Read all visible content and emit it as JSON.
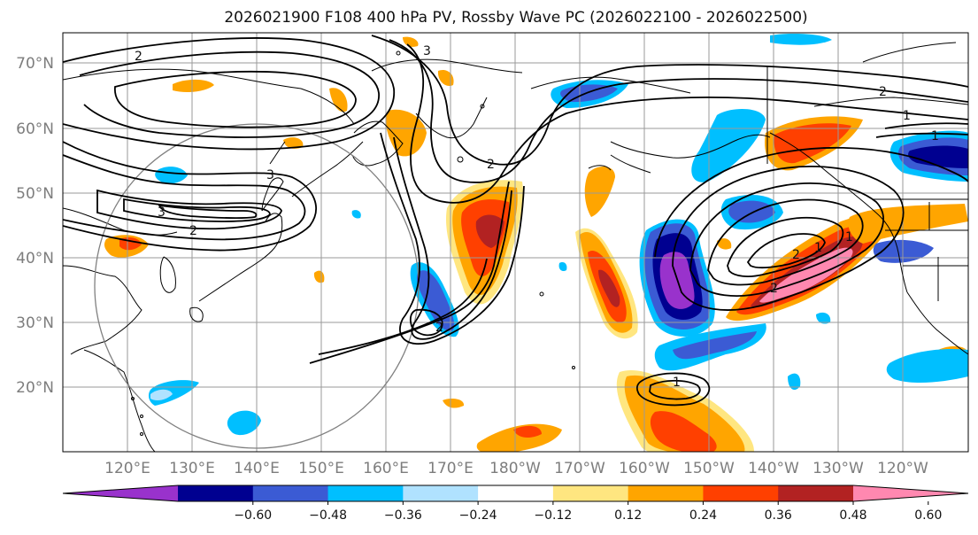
{
  "title": "2026021900 F108 400 hPa PV, Rossby Wave PC (2026022100 - 2026022500)",
  "lat_labels": [
    "70°N",
    "60°N",
    "50°N",
    "40°N",
    "30°N",
    "20°N"
  ],
  "lon_labels": [
    "120°E",
    "130°E",
    "140°E",
    "150°E",
    "160°E",
    "170°E",
    "180°W",
    "170°W",
    "160°W",
    "150°W",
    "140°W",
    "130°W",
    "120°W"
  ],
  "colorbar": {
    "ticks": [
      "−0.60",
      "−0.48",
      "−0.36",
      "−0.24",
      "−0.12",
      "0.12",
      "0.24",
      "0.36",
      "0.48",
      "0.60"
    ],
    "colors": [
      "#9932cc",
      "#000090",
      "#3b5bd4",
      "#00bfff",
      "#b0e2ff",
      "#ffffff",
      "#ffe680",
      "#ffa500",
      "#ff4000",
      "#b22222",
      "#ff88b0"
    ],
    "extend": "both"
  },
  "contour_labels": [
    "2",
    "3",
    "3",
    "2",
    "3",
    "2",
    "2",
    "2",
    "1",
    "1",
    "2",
    "1",
    "1",
    "2",
    "1"
  ],
  "colors": {
    "grid": "#9a9a9a",
    "coast": "#000000",
    "contour": "#000000",
    "circle": "#808080"
  }
}
